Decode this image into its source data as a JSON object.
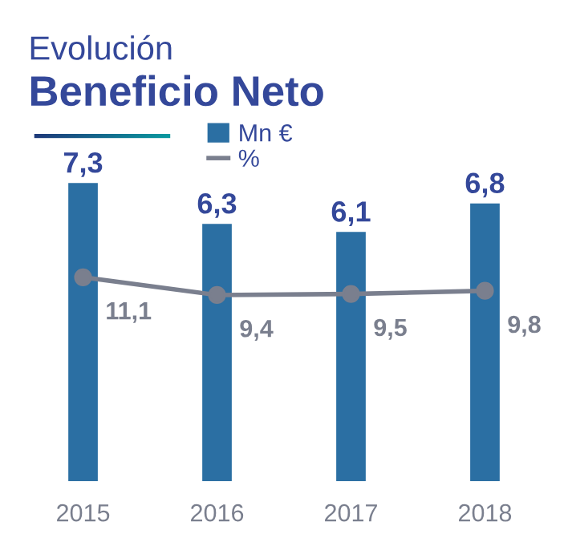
{
  "chart_data": {
    "type": "bar",
    "title": "Evolución",
    "subtitle": "Beneficio Neto",
    "categories": [
      "2015",
      "2016",
      "2017",
      "2018"
    ],
    "series": [
      {
        "name": "Mn €",
        "color": "#2b6fa3",
        "values": [
          7.3,
          6.3,
          6.1,
          6.8
        ],
        "value_labels": [
          "7,3",
          "6,3",
          "6,1",
          "6,8"
        ]
      },
      {
        "name": "%",
        "type": "line",
        "axis": "y2",
        "color": "#7a7f8e",
        "marker": "circle",
        "values": [
          11.1,
          9.4,
          9.5,
          9.8
        ],
        "value_labels": [
          "11,1",
          "9,4",
          "9,5",
          "9,8"
        ]
      }
    ],
    "legend": "top",
    "tick_labels": "x"
  }
}
